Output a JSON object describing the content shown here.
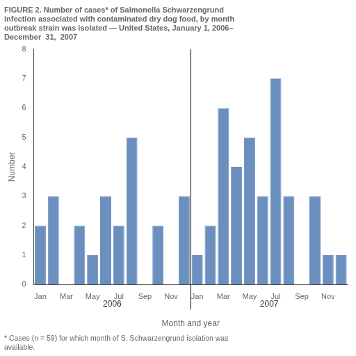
{
  "chart_data": {
    "type": "bar",
    "title": [
      "FIGURE 2. Number of cases* of Salmonella Schwarzengrund",
      "infection associated with contaminated dry dog food, by month",
      "outbreak strain was isolated — United States, January 1, 2006–",
      "December  31,  2007"
    ],
    "categories": [
      "Jan",
      null,
      "Mar",
      null,
      "May",
      null,
      "Jul",
      null,
      "Sep",
      null,
      "Nov",
      null,
      "Jan",
      null,
      "Mar",
      null,
      "May",
      null,
      "Jul",
      null,
      "Sep",
      null,
      "Nov",
      null
    ],
    "values": [
      2,
      3,
      0,
      2,
      1,
      3,
      2,
      5,
      0,
      2,
      0,
      3,
      1,
      2,
      6,
      4,
      5,
      3,
      7,
      3,
      0,
      3,
      1,
      1
    ],
    "group_labels": [
      "2006",
      "2007"
    ],
    "color": "#6b8fbe",
    "xlabel": "Month and year",
    "ylabel": "Number",
    "ylim": [
      0,
      8
    ],
    "yticks": [
      0,
      1,
      2,
      3,
      4,
      5,
      6,
      7,
      8
    ],
    "grid": false,
    "annotations": [
      "* Cases (n = 59) for which month of S. Schwarzengrund isolation was",
      "available."
    ]
  }
}
